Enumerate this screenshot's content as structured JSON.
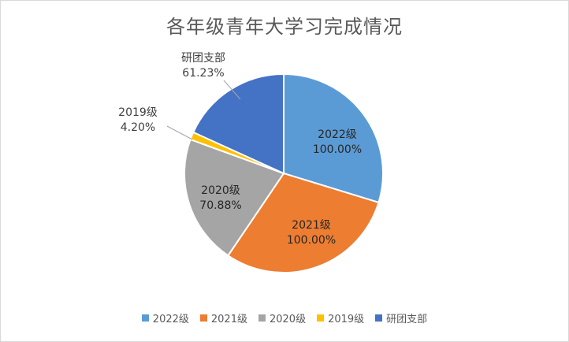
{
  "chart_data": {
    "type": "pie",
    "title": "各年级青年大学习完成情况",
    "categories": [
      "2022级",
      "2021级",
      "2020级",
      "2019级",
      "研团支部"
    ],
    "labels": [
      "100.00%",
      "100.00%",
      "70.88%",
      "4.20%",
      "61.23%"
    ],
    "values": [
      100.0,
      100.0,
      70.88,
      4.2,
      61.23
    ],
    "colors": [
      "#5b9bd5",
      "#ed7d31",
      "#a5a5a5",
      "#ffc000",
      "#4472c4"
    ],
    "legend_position": "bottom"
  }
}
